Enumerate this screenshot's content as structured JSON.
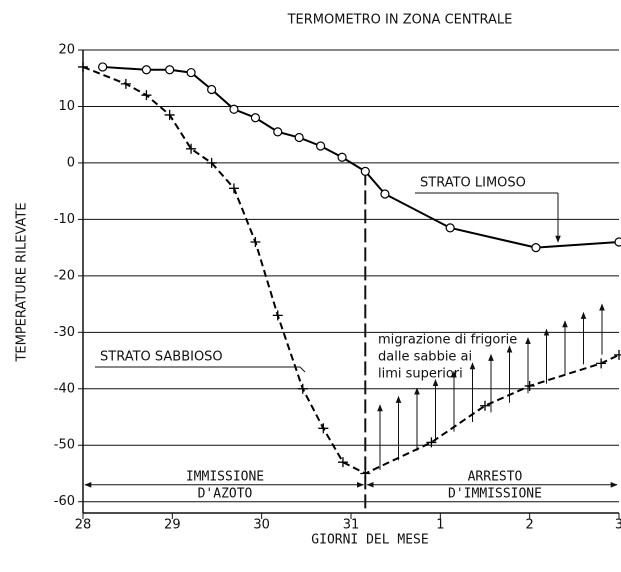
{
  "chart_data": {
    "type": "line",
    "title": "TERMOMETRO IN ZONA CENTRALE",
    "ylabel": "TEMPERATURE RILEVATE",
    "xlabel": "GIORNI DEL MESE",
    "xlim": [
      0,
      6
    ],
    "xticks": [
      {
        "value": 0,
        "label": "28"
      },
      {
        "value": 1,
        "label": "29"
      },
      {
        "value": 2,
        "label": "30"
      },
      {
        "value": 3,
        "label": "31"
      },
      {
        "value": 4,
        "label": "1"
      },
      {
        "value": 5,
        "label": "2"
      },
      {
        "value": 6,
        "label": "3"
      }
    ],
    "ylim": [
      -62,
      20
    ],
    "yticks": [
      20,
      10,
      0,
      -10,
      -20,
      -30,
      -40,
      -50,
      -60
    ],
    "grid": true,
    "series": [
      {
        "name": "STRATO LIMOSO",
        "color": "#000000",
        "marker": "circle",
        "dashed": false,
        "x": [
          0.22,
          0.71,
          0.97,
          1.21,
          1.44,
          1.69,
          1.93,
          2.18,
          2.42,
          2.66,
          2.9,
          3.16,
          3.38,
          4.11,
          5.07,
          6.0
        ],
        "values": [
          17,
          16.5,
          16.5,
          16,
          13,
          9.5,
          8,
          5.5,
          4.5,
          3,
          1,
          -1.5,
          -5.5,
          -11.5,
          -15,
          -14
        ]
      },
      {
        "name": "STRATO SABBIOSO",
        "color": "#000000",
        "marker": "plus",
        "dashed": true,
        "x": [
          0,
          0.48,
          0.71,
          0.97,
          1.21,
          1.44,
          1.69,
          1.93,
          2.18,
          2.46,
          2.69,
          2.91,
          3.16,
          3.9,
          4.5,
          5.0,
          5.8,
          6.0
        ],
        "values": [
          17,
          14,
          12,
          8.5,
          2.5,
          0,
          -4.5,
          -14,
          -27,
          -40,
          -47,
          -53,
          -55,
          -49.5,
          -43,
          -39.5,
          -35.5,
          -34
        ]
      }
    ],
    "annotations": [
      "migrazione di frigorie",
      "dalle sabbie ai",
      "limi superiori",
      "IMMISSIONE",
      "D'AZOTO",
      "ARRESTO",
      "D'IMMISSIONE"
    ]
  }
}
